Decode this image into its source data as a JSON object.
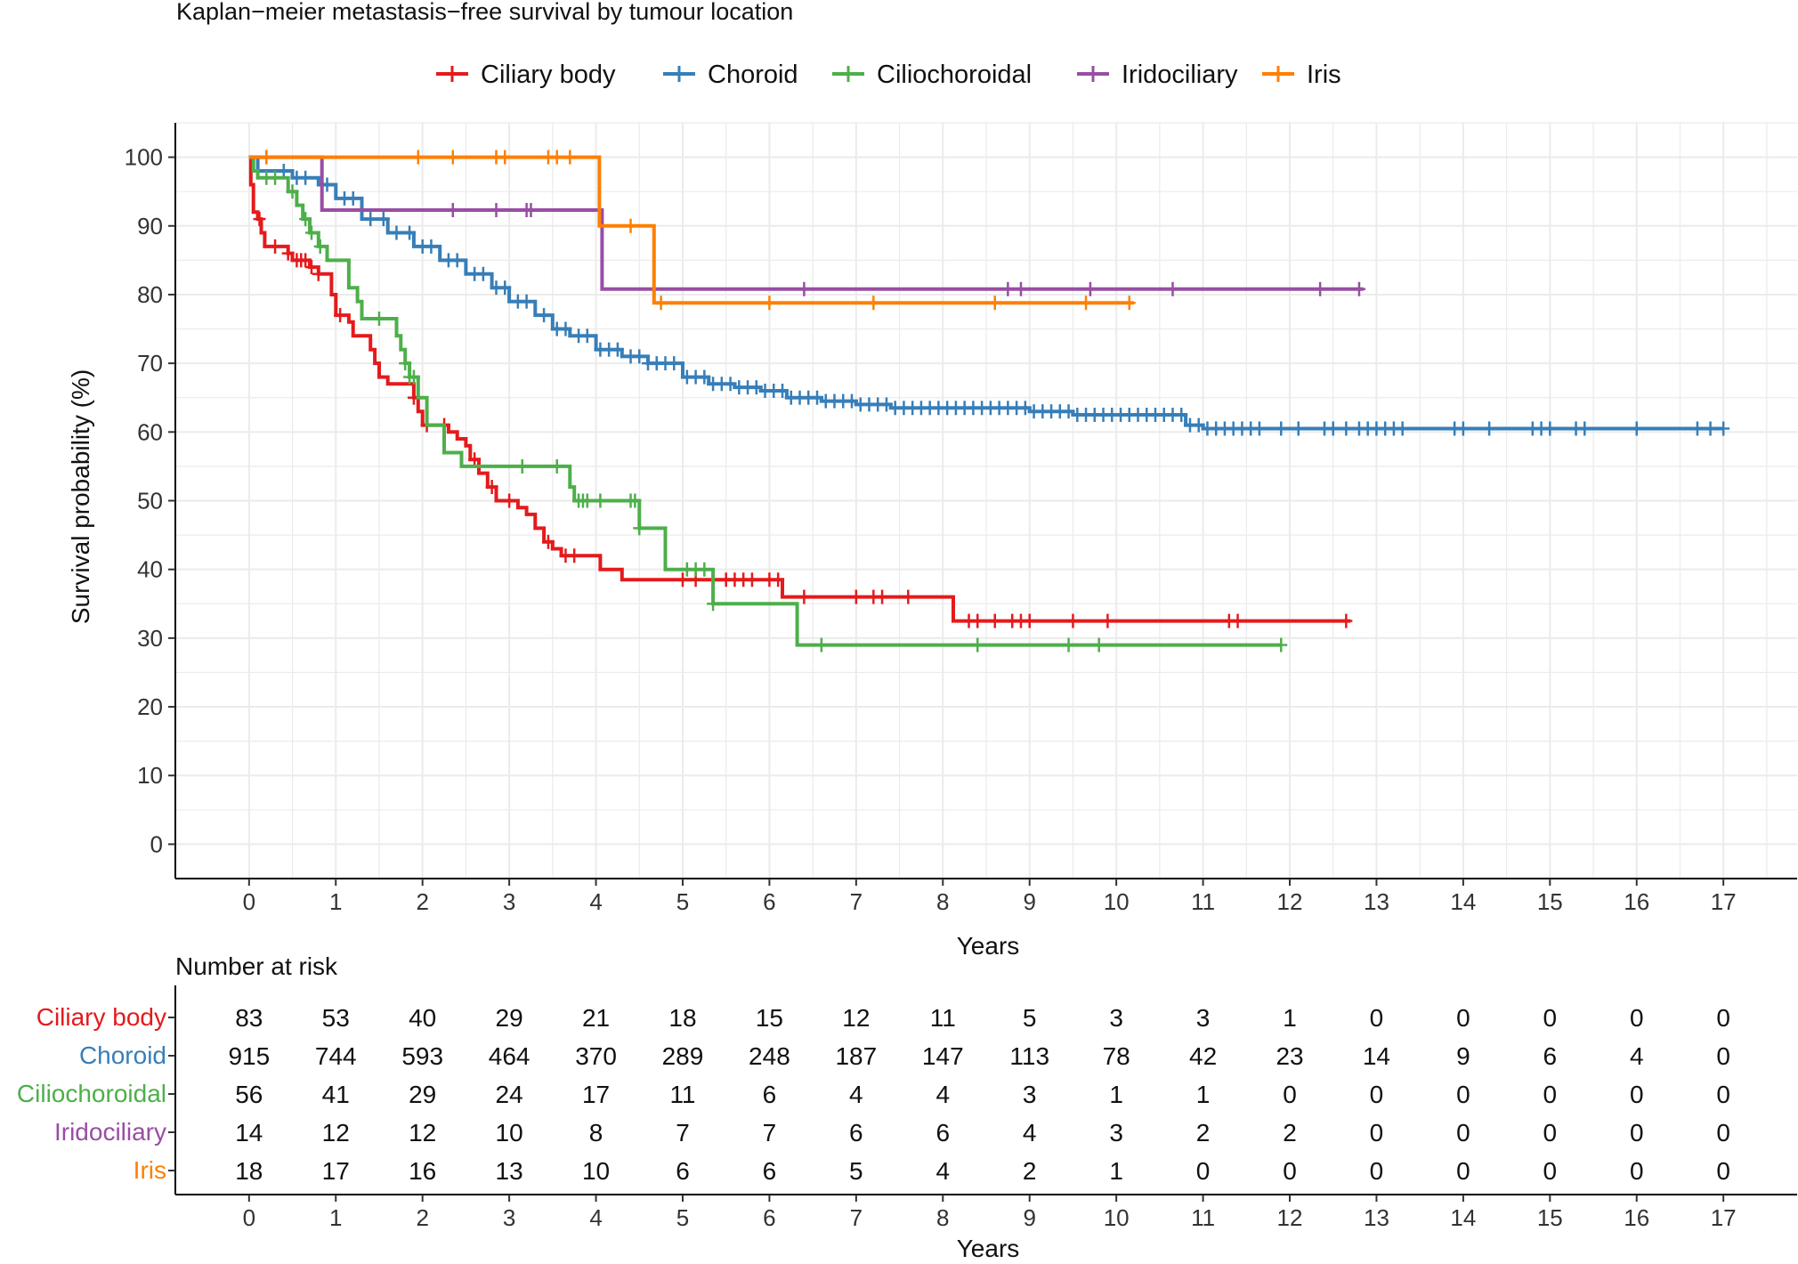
{
  "chart_data": {
    "type": "line",
    "title": "Kaplan−meier metastasis−free survival by tumour location",
    "xlabel": "Years",
    "ylabel": "Survival probability (%)",
    "xlim": [
      -0.85,
      17.85
    ],
    "ylim": [
      -5,
      105
    ],
    "x_ticks": [
      0,
      1,
      2,
      3,
      4,
      5,
      6,
      7,
      8,
      9,
      10,
      11,
      12,
      13,
      14,
      15,
      16,
      17
    ],
    "y_ticks": [
      0,
      10,
      20,
      30,
      40,
      50,
      60,
      70,
      80,
      90,
      100
    ],
    "grid": true,
    "legend_position": "top",
    "series": [
      {
        "name": "Ciliary body",
        "color": "#E41A1C",
        "points": [
          [
            0,
            100
          ],
          [
            0.02,
            96
          ],
          [
            0.05,
            92
          ],
          [
            0.1,
            91
          ],
          [
            0.14,
            89
          ],
          [
            0.18,
            87
          ],
          [
            0.35,
            87
          ],
          [
            0.45,
            86
          ],
          [
            0.5,
            85
          ],
          [
            0.7,
            84
          ],
          [
            0.8,
            83
          ],
          [
            0.95,
            80
          ],
          [
            1.0,
            77
          ],
          [
            1.15,
            76
          ],
          [
            1.2,
            74
          ],
          [
            1.4,
            72
          ],
          [
            1.45,
            70
          ],
          [
            1.5,
            68
          ],
          [
            1.6,
            67
          ],
          [
            1.9,
            65
          ],
          [
            1.95,
            63
          ],
          [
            2.0,
            61
          ],
          [
            2.3,
            60
          ],
          [
            2.4,
            59
          ],
          [
            2.5,
            58
          ],
          [
            2.55,
            56
          ],
          [
            2.65,
            54
          ],
          [
            2.75,
            52
          ],
          [
            2.85,
            50
          ],
          [
            3.1,
            49
          ],
          [
            3.2,
            48
          ],
          [
            3.3,
            46
          ],
          [
            3.4,
            44
          ],
          [
            3.5,
            43
          ],
          [
            3.6,
            42
          ],
          [
            4.05,
            40
          ],
          [
            4.3,
            38.5
          ],
          [
            6.1,
            38.5
          ],
          [
            6.15,
            36
          ],
          [
            8.1,
            36
          ],
          [
            8.12,
            32.5
          ],
          [
            12.7,
            32.5
          ]
        ],
        "censor_x": [
          0.12,
          0.3,
          0.45,
          0.55,
          0.6,
          0.65,
          0.72,
          0.8,
          1.05,
          1.9,
          2.05,
          2.25,
          2.6,
          2.8,
          3.0,
          3.45,
          3.65,
          3.75,
          5.0,
          5.15,
          5.5,
          5.6,
          5.7,
          5.8,
          6.0,
          6.1,
          6.4,
          7.0,
          7.2,
          7.3,
          7.6,
          8.3,
          8.4,
          8.6,
          8.8,
          8.9,
          9.0,
          9.5,
          9.9,
          11.3,
          11.4,
          12.65
        ]
      },
      {
        "name": "Choroid",
        "color": "#377EB8",
        "points": [
          [
            0,
            100
          ],
          [
            0.1,
            98
          ],
          [
            0.5,
            97
          ],
          [
            0.8,
            96
          ],
          [
            1.0,
            94
          ],
          [
            1.3,
            91
          ],
          [
            1.6,
            89
          ],
          [
            1.9,
            87
          ],
          [
            2.2,
            85
          ],
          [
            2.5,
            83
          ],
          [
            2.8,
            81
          ],
          [
            3.0,
            79
          ],
          [
            3.3,
            77
          ],
          [
            3.5,
            75
          ],
          [
            3.7,
            74
          ],
          [
            4.0,
            72
          ],
          [
            4.3,
            71
          ],
          [
            4.6,
            70
          ],
          [
            5.0,
            68
          ],
          [
            5.3,
            67
          ],
          [
            5.6,
            66.5
          ],
          [
            5.9,
            66
          ],
          [
            6.2,
            65
          ],
          [
            6.6,
            64.5
          ],
          [
            7.0,
            64
          ],
          [
            7.4,
            63.5
          ],
          [
            8.5,
            63.5
          ],
          [
            9.0,
            63
          ],
          [
            9.5,
            62.5
          ],
          [
            10.6,
            62.5
          ],
          [
            10.8,
            61
          ],
          [
            11.0,
            60.5
          ],
          [
            17.0,
            60.5
          ]
        ],
        "censor_x": [
          0.4,
          0.55,
          0.65,
          0.9,
          1.1,
          1.2,
          1.4,
          1.55,
          1.7,
          1.85,
          2.0,
          2.1,
          2.3,
          2.4,
          2.6,
          2.7,
          2.85,
          2.95,
          3.1,
          3.2,
          3.4,
          3.55,
          3.65,
          3.8,
          3.9,
          4.05,
          4.15,
          4.25,
          4.4,
          4.5,
          4.6,
          4.7,
          4.8,
          4.9,
          5.05,
          5.15,
          5.25,
          5.35,
          5.45,
          5.55,
          5.65,
          5.75,
          5.85,
          5.95,
          6.05,
          6.15,
          6.25,
          6.35,
          6.45,
          6.55,
          6.65,
          6.75,
          6.85,
          6.95,
          7.05,
          7.15,
          7.25,
          7.35,
          7.45,
          7.55,
          7.65,
          7.75,
          7.85,
          7.95,
          8.05,
          8.15,
          8.25,
          8.35,
          8.45,
          8.55,
          8.65,
          8.75,
          8.85,
          8.95,
          9.05,
          9.15,
          9.25,
          9.35,
          9.45,
          9.55,
          9.65,
          9.75,
          9.85,
          9.95,
          10.05,
          10.15,
          10.25,
          10.35,
          10.45,
          10.55,
          10.65,
          10.75,
          10.85,
          10.95,
          11.05,
          11.15,
          11.25,
          11.35,
          11.45,
          11.55,
          11.65,
          11.9,
          12.1,
          12.4,
          12.5,
          12.65,
          12.8,
          12.9,
          13.0,
          13.1,
          13.2,
          13.3,
          13.9,
          14.0,
          14.3,
          14.8,
          14.9,
          15.0,
          15.3,
          15.4,
          16.0,
          16.7,
          16.85,
          17.0
        ]
      },
      {
        "name": "Ciliochoroidal",
        "color": "#4DAF4A",
        "points": [
          [
            0,
            100
          ],
          [
            0.05,
            98
          ],
          [
            0.1,
            97
          ],
          [
            0.45,
            95
          ],
          [
            0.55,
            93
          ],
          [
            0.62,
            91
          ],
          [
            0.7,
            89
          ],
          [
            0.8,
            87
          ],
          [
            0.9,
            85
          ],
          [
            1.15,
            81
          ],
          [
            1.25,
            79
          ],
          [
            1.3,
            76.5
          ],
          [
            1.65,
            76.5
          ],
          [
            1.7,
            74
          ],
          [
            1.75,
            72
          ],
          [
            1.8,
            70
          ],
          [
            1.85,
            68
          ],
          [
            1.95,
            65
          ],
          [
            2.05,
            61
          ],
          [
            2.25,
            57
          ],
          [
            2.45,
            55
          ],
          [
            3.55,
            55
          ],
          [
            3.7,
            52
          ],
          [
            3.75,
            50
          ],
          [
            4.4,
            50
          ],
          [
            4.5,
            46
          ],
          [
            4.75,
            46
          ],
          [
            4.8,
            40
          ],
          [
            5.3,
            40
          ],
          [
            5.35,
            35
          ],
          [
            6.3,
            35
          ],
          [
            6.32,
            29
          ],
          [
            11.9,
            29
          ]
        ],
        "censor_x": [
          0.2,
          0.3,
          0.5,
          0.65,
          0.72,
          0.82,
          1.5,
          1.8,
          1.85,
          1.9,
          3.15,
          3.55,
          3.8,
          3.85,
          3.9,
          4.05,
          4.4,
          4.45,
          4.5,
          5.05,
          5.15,
          5.25,
          5.35,
          6.6,
          8.4,
          9.45,
          9.8,
          11.9
        ]
      },
      {
        "name": "Iridociliary",
        "color": "#984EA3",
        "points": [
          [
            0,
            100
          ],
          [
            0.82,
            100
          ],
          [
            0.84,
            92.3
          ],
          [
            4.05,
            92.3
          ],
          [
            4.07,
            80.8
          ],
          [
            12.85,
            80.8
          ]
        ],
        "censor_x": [
          0.2,
          2.35,
          2.85,
          3.2,
          3.25,
          6.4,
          8.75,
          8.9,
          9.7,
          10.65,
          12.35,
          12.8
        ]
      },
      {
        "name": "Iris",
        "color": "#FF7F00",
        "points": [
          [
            0,
            100
          ],
          [
            4.02,
            100
          ],
          [
            4.04,
            90
          ],
          [
            4.65,
            90
          ],
          [
            4.67,
            78.8
          ],
          [
            10.2,
            78.8
          ]
        ],
        "censor_x": [
          0.2,
          1.95,
          2.35,
          2.85,
          2.95,
          3.45,
          3.55,
          3.7,
          4.4,
          4.75,
          6.0,
          7.2,
          8.6,
          9.65,
          10.15
        ]
      }
    ],
    "risk_table": {
      "title": "Number at risk",
      "xlabel": "Years",
      "times": [
        0,
        1,
        2,
        3,
        4,
        5,
        6,
        7,
        8,
        9,
        10,
        11,
        12,
        13,
        14,
        15,
        16,
        17
      ],
      "rows": [
        {
          "name": "Ciliary body",
          "color": "#E41A1C",
          "values": [
            83,
            53,
            40,
            29,
            21,
            18,
            15,
            12,
            11,
            5,
            3,
            3,
            1,
            0,
            0,
            0,
            0,
            0
          ]
        },
        {
          "name": "Choroid",
          "color": "#377EB8",
          "values": [
            915,
            744,
            593,
            464,
            370,
            289,
            248,
            187,
            147,
            113,
            78,
            42,
            23,
            14,
            9,
            6,
            4,
            0
          ]
        },
        {
          "name": "Ciliochoroidal",
          "color": "#4DAF4A",
          "values": [
            56,
            41,
            29,
            24,
            17,
            11,
            6,
            4,
            4,
            3,
            1,
            1,
            0,
            0,
            0,
            0,
            0,
            0
          ]
        },
        {
          "name": "Iridociliary",
          "color": "#984EA3",
          "values": [
            14,
            12,
            12,
            10,
            8,
            7,
            7,
            6,
            6,
            4,
            3,
            2,
            2,
            0,
            0,
            0,
            0,
            0
          ]
        },
        {
          "name": "Iris",
          "color": "#FF7F00",
          "values": [
            18,
            17,
            16,
            13,
            10,
            6,
            6,
            5,
            4,
            2,
            1,
            0,
            0,
            0,
            0,
            0,
            0,
            0
          ]
        }
      ]
    }
  }
}
